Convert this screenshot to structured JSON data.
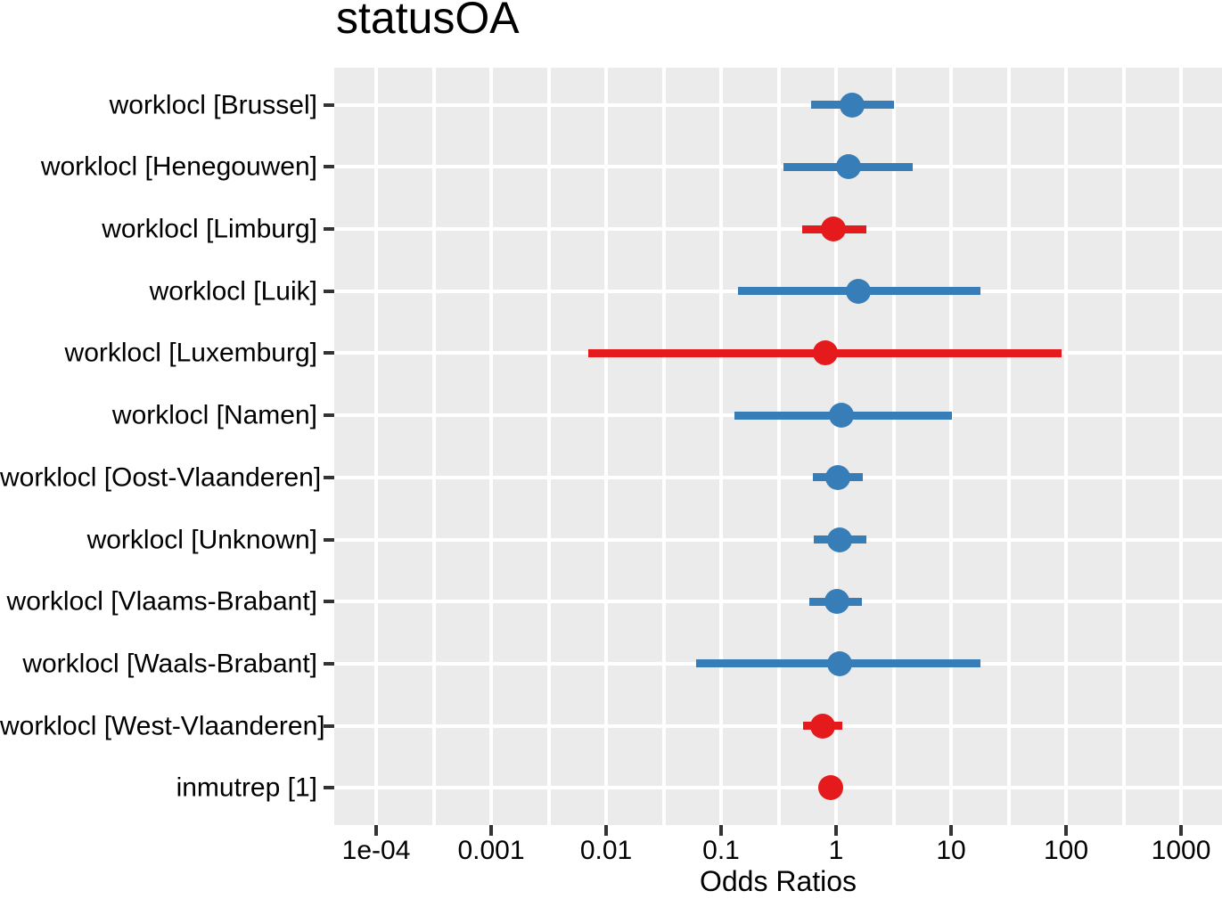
{
  "title": "statusOA",
  "colors": {
    "positive_effect": "#377EB8",
    "negative_effect": "#E41A1C",
    "panel_background": "#EBEBEB",
    "gridline": "#FFFFFF",
    "tick_mark": "#333333",
    "text": "#000000"
  },
  "chart_data": {
    "type": "scatter",
    "subtype": "forest-plot-odds-ratios",
    "title": "statusOA",
    "xlabel": "Odds Ratios",
    "ylabel": "",
    "x_scale": "log10",
    "xlim": [
      4.32e-05,
      2272
    ],
    "grid": "on",
    "legend": "none",
    "x_ticks": {
      "labels": [
        "1e-04",
        "0.001",
        "0.01",
        "0.1",
        "1",
        "10",
        "100",
        "1000"
      ],
      "values": [
        0.0001,
        0.001,
        0.01,
        0.1,
        1,
        10,
        100,
        1000
      ]
    },
    "rows": [
      {
        "label": "worklocl [Brussel]",
        "or": 1.38,
        "ci_low": 0.61,
        "ci_high": 3.2,
        "color": "#377EB8"
      },
      {
        "label": "worklocl [Henegouwen]",
        "or": 1.28,
        "ci_low": 0.35,
        "ci_high": 4.6,
        "color": "#377EB8"
      },
      {
        "label": "worklocl [Limburg]",
        "or": 0.95,
        "ci_low": 0.51,
        "ci_high": 1.82,
        "color": "#E41A1C"
      },
      {
        "label": "worklocl [Luik]",
        "or": 1.56,
        "ci_low": 0.14,
        "ci_high": 18.0,
        "color": "#377EB8"
      },
      {
        "label": "worklocl [Luxemburg]",
        "or": 0.8,
        "ci_low": 0.007,
        "ci_high": 92,
        "color": "#E41A1C"
      },
      {
        "label": "worklocl [Namen]",
        "or": 1.11,
        "ci_low": 0.13,
        "ci_high": 10.1,
        "color": "#377EB8"
      },
      {
        "label": "worklocl [Oost-Vlaanderen]",
        "or": 1.04,
        "ci_low": 0.63,
        "ci_high": 1.72,
        "color": "#377EB8"
      },
      {
        "label": "worklocl [Unknown]",
        "or": 1.07,
        "ci_low": 0.64,
        "ci_high": 1.82,
        "color": "#377EB8"
      },
      {
        "label": "worklocl [Vlaams-Brabant]",
        "or": 1.01,
        "ci_low": 0.59,
        "ci_high": 1.67,
        "color": "#377EB8"
      },
      {
        "label": "worklocl [Waals-Brabant]",
        "or": 1.07,
        "ci_low": 0.061,
        "ci_high": 18.0,
        "color": "#377EB8"
      },
      {
        "label": "worklocl [West-Vlaanderen]",
        "or": 0.76,
        "ci_low": 0.52,
        "ci_high": 1.13,
        "color": "#E41A1C"
      },
      {
        "label": "inmutrep [1]",
        "or": 0.9,
        "ci_low": 0.85,
        "ci_high": 0.96,
        "color": "#E41A1C"
      }
    ]
  }
}
